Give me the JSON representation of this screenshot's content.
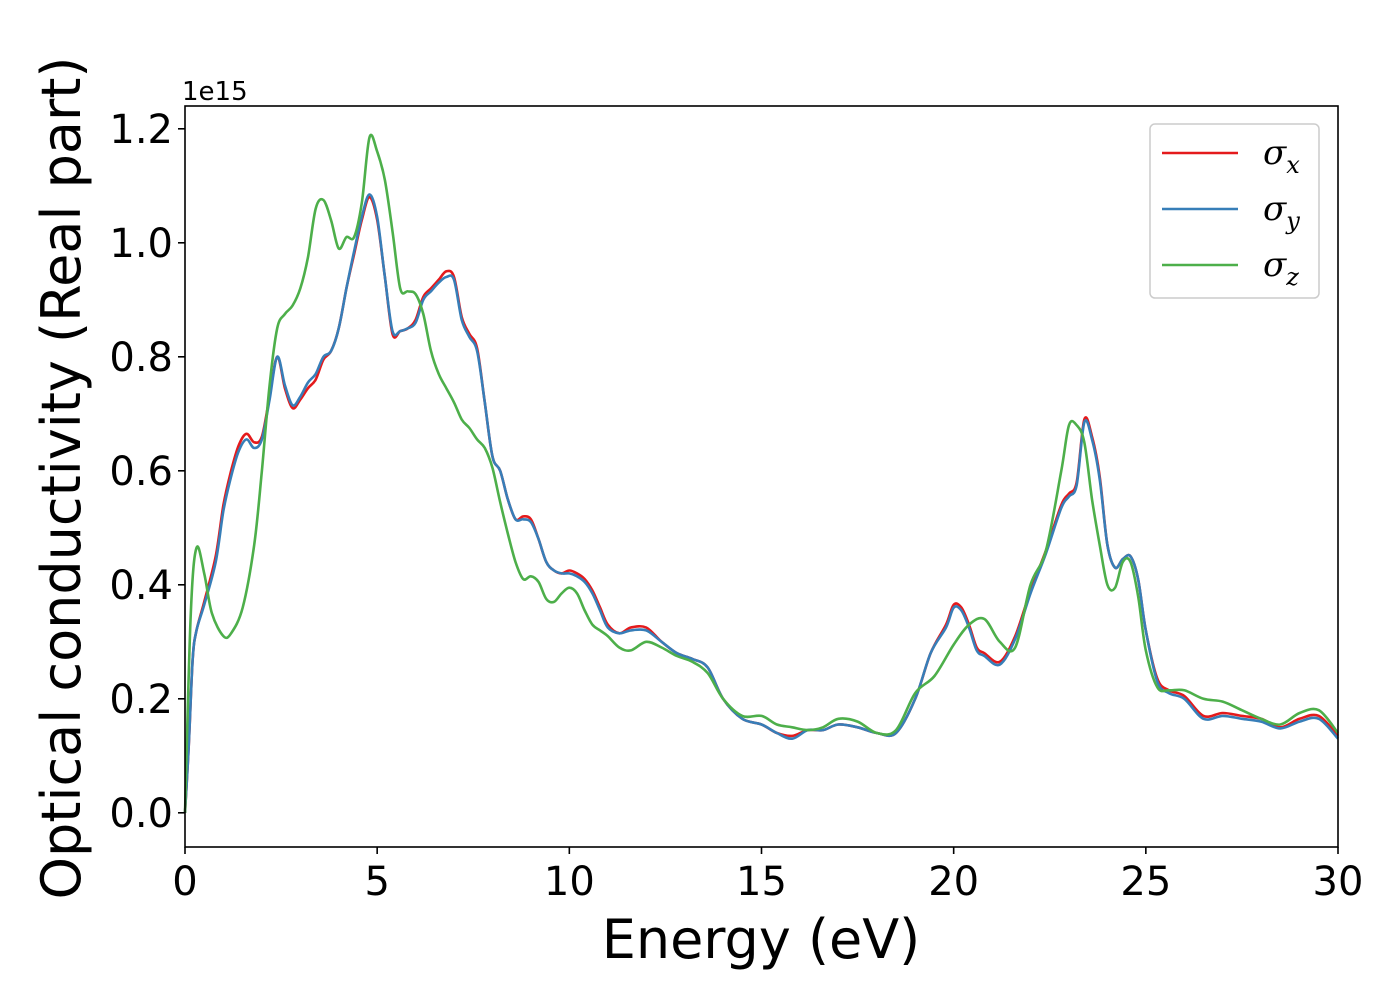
{
  "chart_data": {
    "type": "line",
    "title": "",
    "xlabel": "Energy (eV)",
    "ylabel": "Optical conductivity (Real part)",
    "y_offset_text": "1e15",
    "xlim": [
      0,
      30
    ],
    "ylim": [
      -0.06,
      1.24
    ],
    "xticks": [
      0,
      5,
      10,
      15,
      20,
      25,
      30
    ],
    "xtick_labels": [
      "0",
      "5",
      "10",
      "15",
      "20",
      "25",
      "30"
    ],
    "yticks": [
      0.0,
      0.2,
      0.4,
      0.6,
      0.8,
      1.0,
      1.2
    ],
    "ytick_labels": [
      "0.0",
      "0.2",
      "0.4",
      "0.6",
      "0.8",
      "1.0",
      "1.2"
    ],
    "grid": false,
    "legend_position": "top-right",
    "series": [
      {
        "name": "σx",
        "label_base": "σ",
        "label_sub": "x",
        "color": "#e41a1c",
        "x": [
          0,
          0.1,
          0.2,
          0.3,
          0.5,
          0.8,
          1.0,
          1.2,
          1.4,
          1.6,
          1.8,
          2.0,
          2.2,
          2.4,
          2.6,
          2.8,
          3.0,
          3.2,
          3.4,
          3.6,
          3.8,
          4.0,
          4.2,
          4.4,
          4.6,
          4.8,
          5.0,
          5.2,
          5.4,
          5.6,
          5.8,
          6.0,
          6.2,
          6.4,
          6.6,
          6.8,
          7.0,
          7.2,
          7.4,
          7.6,
          7.8,
          8.0,
          8.2,
          8.4,
          8.6,
          8.8,
          9.0,
          9.2,
          9.4,
          9.6,
          9.8,
          10.0,
          10.2,
          10.4,
          10.6,
          10.8,
          11.0,
          11.3,
          11.6,
          12.0,
          12.4,
          12.8,
          13.2,
          13.6,
          14.0,
          14.5,
          15.0,
          15.4,
          15.8,
          16.2,
          16.6,
          17.0,
          17.5,
          18.0,
          18.5,
          19.0,
          19.4,
          19.8,
          20.0,
          20.2,
          20.4,
          20.6,
          20.8,
          21.2,
          21.6,
          22.0,
          22.4,
          22.8,
          23.0,
          23.2,
          23.4,
          23.6,
          23.8,
          24.0,
          24.2,
          24.4,
          24.6,
          24.8,
          25.0,
          25.3,
          25.6,
          26.0,
          26.5,
          27.0,
          27.5,
          28.0,
          28.5,
          29.0,
          29.5,
          30.0
        ],
        "values": [
          0.0,
          0.12,
          0.27,
          0.32,
          0.37,
          0.45,
          0.54,
          0.6,
          0.645,
          0.665,
          0.65,
          0.66,
          0.73,
          0.8,
          0.745,
          0.71,
          0.725,
          0.745,
          0.76,
          0.795,
          0.81,
          0.85,
          0.92,
          0.98,
          1.04,
          1.08,
          1.04,
          0.94,
          0.84,
          0.845,
          0.85,
          0.865,
          0.905,
          0.92,
          0.935,
          0.95,
          0.94,
          0.87,
          0.84,
          0.815,
          0.72,
          0.625,
          0.6,
          0.55,
          0.515,
          0.52,
          0.515,
          0.48,
          0.44,
          0.425,
          0.42,
          0.425,
          0.42,
          0.41,
          0.39,
          0.36,
          0.33,
          0.315,
          0.325,
          0.325,
          0.3,
          0.28,
          0.27,
          0.255,
          0.2,
          0.165,
          0.155,
          0.14,
          0.135,
          0.145,
          0.145,
          0.155,
          0.15,
          0.14,
          0.14,
          0.2,
          0.28,
          0.33,
          0.365,
          0.36,
          0.33,
          0.29,
          0.28,
          0.265,
          0.31,
          0.39,
          0.46,
          0.54,
          0.56,
          0.58,
          0.69,
          0.66,
          0.59,
          0.47,
          0.43,
          0.445,
          0.45,
          0.41,
          0.32,
          0.235,
          0.215,
          0.205,
          0.17,
          0.175,
          0.17,
          0.165,
          0.15,
          0.165,
          0.17,
          0.135
        ]
      },
      {
        "name": "σy",
        "label_base": "σ",
        "label_sub": "y",
        "color": "#377eb8",
        "x": [
          0,
          0.1,
          0.2,
          0.3,
          0.5,
          0.8,
          1.0,
          1.2,
          1.4,
          1.6,
          1.8,
          2.0,
          2.2,
          2.4,
          2.6,
          2.8,
          3.0,
          3.2,
          3.4,
          3.6,
          3.8,
          4.0,
          4.2,
          4.4,
          4.6,
          4.8,
          5.0,
          5.2,
          5.4,
          5.6,
          5.8,
          6.0,
          6.2,
          6.4,
          6.6,
          6.8,
          7.0,
          7.2,
          7.4,
          7.6,
          7.8,
          8.0,
          8.2,
          8.4,
          8.6,
          8.8,
          9.0,
          9.2,
          9.4,
          9.6,
          9.8,
          10.0,
          10.2,
          10.4,
          10.6,
          10.8,
          11.0,
          11.3,
          11.6,
          12.0,
          12.4,
          12.8,
          13.2,
          13.6,
          14.0,
          14.5,
          15.0,
          15.4,
          15.8,
          16.2,
          16.6,
          17.0,
          17.5,
          18.0,
          18.5,
          19.0,
          19.4,
          19.8,
          20.0,
          20.2,
          20.4,
          20.6,
          20.8,
          21.2,
          21.6,
          22.0,
          22.4,
          22.8,
          23.0,
          23.2,
          23.4,
          23.6,
          23.8,
          24.0,
          24.2,
          24.4,
          24.6,
          24.8,
          25.0,
          25.3,
          25.6,
          26.0,
          26.5,
          27.0,
          27.5,
          28.0,
          28.5,
          29.0,
          29.5,
          30.0
        ],
        "values": [
          0.0,
          0.12,
          0.27,
          0.32,
          0.365,
          0.44,
          0.53,
          0.59,
          0.635,
          0.655,
          0.64,
          0.655,
          0.725,
          0.8,
          0.75,
          0.715,
          0.73,
          0.755,
          0.77,
          0.8,
          0.81,
          0.85,
          0.92,
          0.985,
          1.045,
          1.085,
          1.045,
          0.94,
          0.845,
          0.845,
          0.85,
          0.86,
          0.9,
          0.915,
          0.93,
          0.94,
          0.935,
          0.865,
          0.835,
          0.81,
          0.72,
          0.625,
          0.6,
          0.55,
          0.515,
          0.515,
          0.51,
          0.48,
          0.44,
          0.425,
          0.42,
          0.42,
          0.415,
          0.405,
          0.385,
          0.355,
          0.325,
          0.315,
          0.32,
          0.32,
          0.3,
          0.28,
          0.27,
          0.255,
          0.2,
          0.165,
          0.155,
          0.14,
          0.13,
          0.145,
          0.145,
          0.155,
          0.15,
          0.14,
          0.14,
          0.2,
          0.28,
          0.325,
          0.36,
          0.355,
          0.325,
          0.285,
          0.275,
          0.26,
          0.305,
          0.385,
          0.455,
          0.535,
          0.555,
          0.575,
          0.685,
          0.655,
          0.585,
          0.47,
          0.43,
          0.445,
          0.45,
          0.41,
          0.32,
          0.23,
          0.21,
          0.2,
          0.165,
          0.17,
          0.165,
          0.16,
          0.148,
          0.16,
          0.165,
          0.13
        ]
      },
      {
        "name": "σz",
        "label_base": "σ",
        "label_sub": "z",
        "color": "#4daf4a",
        "x": [
          0,
          0.15,
          0.3,
          0.5,
          0.7,
          1.0,
          1.2,
          1.5,
          1.8,
          2.0,
          2.2,
          2.4,
          2.6,
          2.8,
          3.0,
          3.2,
          3.4,
          3.6,
          3.8,
          4.0,
          4.2,
          4.4,
          4.6,
          4.8,
          5.0,
          5.2,
          5.4,
          5.6,
          5.8,
          6.0,
          6.2,
          6.4,
          6.6,
          6.8,
          7.0,
          7.2,
          7.4,
          7.6,
          7.8,
          8.0,
          8.2,
          8.4,
          8.6,
          8.8,
          9.0,
          9.2,
          9.4,
          9.6,
          9.8,
          10.0,
          10.2,
          10.4,
          10.6,
          10.8,
          11.0,
          11.3,
          11.6,
          12.0,
          12.4,
          12.8,
          13.2,
          13.6,
          14.0,
          14.5,
          15.0,
          15.4,
          15.8,
          16.2,
          16.6,
          17.0,
          17.5,
          18.0,
          18.5,
          19.0,
          19.5,
          20.0,
          20.4,
          20.8,
          21.2,
          21.6,
          22.0,
          22.4,
          22.8,
          23.0,
          23.2,
          23.4,
          23.6,
          23.8,
          24.0,
          24.2,
          24.4,
          24.6,
          24.8,
          25.0,
          25.3,
          25.6,
          26.0,
          26.5,
          27.0,
          27.5,
          28.0,
          28.5,
          29.0,
          29.5,
          30.0
        ],
        "values": [
          0.0,
          0.35,
          0.465,
          0.42,
          0.35,
          0.31,
          0.315,
          0.36,
          0.47,
          0.6,
          0.75,
          0.85,
          0.875,
          0.89,
          0.92,
          0.975,
          1.06,
          1.075,
          1.04,
          0.99,
          1.01,
          1.01,
          1.07,
          1.185,
          1.16,
          1.11,
          1.02,
          0.92,
          0.915,
          0.91,
          0.875,
          0.81,
          0.77,
          0.745,
          0.72,
          0.69,
          0.675,
          0.655,
          0.64,
          0.605,
          0.545,
          0.49,
          0.44,
          0.41,
          0.415,
          0.405,
          0.375,
          0.37,
          0.385,
          0.395,
          0.385,
          0.355,
          0.33,
          0.32,
          0.31,
          0.29,
          0.285,
          0.3,
          0.29,
          0.275,
          0.265,
          0.245,
          0.2,
          0.17,
          0.17,
          0.155,
          0.15,
          0.145,
          0.15,
          0.165,
          0.16,
          0.14,
          0.145,
          0.21,
          0.24,
          0.295,
          0.33,
          0.34,
          0.3,
          0.29,
          0.4,
          0.46,
          0.6,
          0.68,
          0.68,
          0.65,
          0.55,
          0.47,
          0.4,
          0.395,
          0.44,
          0.44,
          0.38,
          0.285,
          0.22,
          0.215,
          0.215,
          0.2,
          0.195,
          0.18,
          0.165,
          0.155,
          0.175,
          0.18,
          0.14
        ]
      }
    ]
  }
}
